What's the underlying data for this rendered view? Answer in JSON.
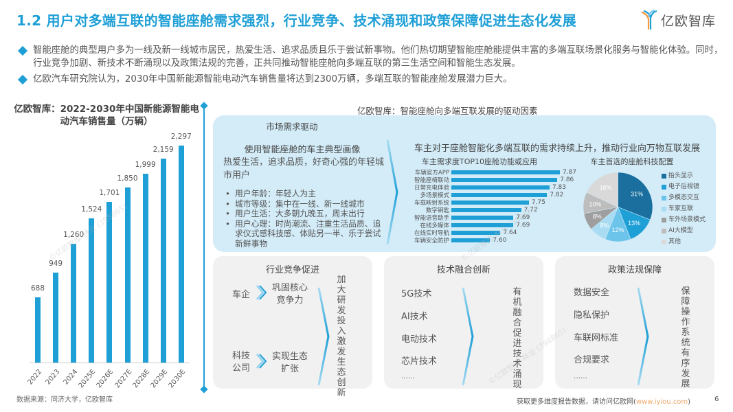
{
  "header": {
    "title": "1.2 用户对多端互联的智能座舱需求强烈，行业竞争、技术涌现和政策保障促进生态化发展",
    "logo_text": "亿欧智库"
  },
  "bullets": [
    "智能座舱的典型用户多为一线及新一线城市居民，热爱生活、追求品质且乐于尝试新事物。他们热切期望智能座舱能提供丰富的多端互联场景化服务与智能化体验。同时，行业竞争加剧、新技术不断涌现以及政策法规的完善，正共同推动智能座舱向多端互联的第三生活空间和智能生态发展。",
    "亿欧汽车研究院认为，2030年中国新能源智能电动汽车销售量将达到2300万辆，多端互联的智能座舱发展潜力巨大。"
  ],
  "left_panel": {
    "title": "亿欧智库：2022-2030年中国新能源智能电动汽车销售量（万辆）",
    "source": "数据来源：同济大学，亿欧智库"
  },
  "chart_data": [
    {
      "type": "bar",
      "title": "亿欧智库：2022-2030年中国新能源智能电动汽车销售量（万辆）",
      "categories": [
        "2022",
        "2023",
        "2024",
        "2025E",
        "2026E",
        "2027E",
        "2028E",
        "2029E",
        "2030E"
      ],
      "values": [
        688,
        949,
        1260,
        1524,
        1701,
        1850,
        1999,
        2159,
        2297
      ],
      "value_labels": [
        "688",
        "949",
        "1,260",
        "1,524",
        "1,701",
        "1,850",
        "1,999",
        "2,159",
        "2,297"
      ],
      "xlabel": "",
      "ylabel": "万辆",
      "grid": false,
      "color": "#1e9fd6"
    },
    {
      "type": "bar",
      "orientation": "horizontal",
      "title": "车主需求度TOP10座舱功能或应用",
      "categories": [
        "车辆官方APP",
        "智能座椅联动",
        "日常充电体验",
        "多场景模式",
        "车载映射系统",
        "数字钥匙",
        "智能语音助手",
        "在线多媒体",
        "在线实时导航",
        "车辆安全防护"
      ],
      "values": [
        7.87,
        7.86,
        7.83,
        7.82,
        7.75,
        7.72,
        7.69,
        7.69,
        7.64,
        7.6
      ],
      "color": "#1e9fd6"
    },
    {
      "type": "pie",
      "title": "车主首选的座舱科技配置",
      "categories": [
        "抬头显示",
        "电子后视镜",
        "多模态交互",
        "车家互联",
        "车外场景模式",
        "AI大模型",
        "其他"
      ],
      "values": [
        31,
        13,
        12,
        8,
        8,
        10,
        18
      ],
      "colors": [
        "#1a6f9e",
        "#1e9fd6",
        "#6cc4ea",
        "#a9dcf2",
        "#9e9e9e",
        "#bdbdbd",
        "#d9d9d9"
      ],
      "legend_position": "right"
    }
  ],
  "right_panel": {
    "title": "亿欧智库：智能座舱向多端互联发展的驱动因素",
    "market": {
      "heading": "市场需求驱动",
      "persona_title": "使用智能座舱的车主典型画像",
      "persona_lead": "热爱生活，追求品质，好奇心强的年轻城市用户",
      "persona_points": [
        "用户年龄：年轻人为主",
        "城市等级：集中在一线、新一线城市",
        "用户生活：大多朝九晚五，周末出行",
        "用户心理：时尚潮流、注重生活品质、追求仪式感科技感、体贴另一半、乐于尝试新鲜事物"
      ],
      "demand_title": "车主对于座舱智能化多端互联的需求持续上升，推动行业向万物互联发展",
      "top10_title": "车主需求度TOP10座舱功能或应用",
      "top10": [
        {
          "label": "车辆官方APP",
          "value": "7.87"
        },
        {
          "label": "智能座椅联动",
          "value": "7.86"
        },
        {
          "label": "日常充电体验",
          "value": "7.83"
        },
        {
          "label": "多场景模式",
          "value": "7.82"
        },
        {
          "label": "车载映射系统",
          "value": "7.75"
        },
        {
          "label": "数字钥匙",
          "value": "7.72"
        },
        {
          "label": "智能语音助手",
          "value": "7.69"
        },
        {
          "label": "在线多媒体",
          "value": "7.69"
        },
        {
          "label": "在线实时导航",
          "value": "7.64"
        },
        {
          "label": "车辆安全防护",
          "value": "7.60"
        }
      ],
      "pie_title": "车主首选的座舱科技配置",
      "pie_labels": [
        "31%",
        "13%",
        "12%",
        "8%",
        "8%",
        "10%",
        "18%"
      ],
      "legend": [
        "抬头显示",
        "电子后视镜",
        "多模态交互",
        "车家互联",
        "车外场景模式",
        "AI大模型",
        "其他"
      ]
    },
    "industry": {
      "title": "行业竞争促进",
      "rows": [
        {
          "actor": "车企",
          "result": "巩固核心竞争力"
        },
        {
          "actor": "科技公司",
          "result": "实现生态扩张"
        }
      ],
      "conclusion": "加大研发投入激发生态创新"
    },
    "tech": {
      "title": "技术融合创新",
      "items": [
        "5G技术",
        "AI技术",
        "电动技术",
        "芯片技术",
        "……"
      ],
      "conclusion": "有机融合促进技术涌现"
    },
    "policy": {
      "title": "政策法规保障",
      "items": [
        "数据安全",
        "隐私保护",
        "车联网标准",
        "合规要求",
        "……"
      ],
      "conclusion": "保障操作系统有序发展"
    }
  },
  "footer": {
    "text": "获取更多维度报告数据，请访问亿欧网(",
    "url": "www.iyiou.com",
    "close": ")",
    "page": "6"
  },
  "colors": {
    "accent": "#1e9fd6",
    "market_bg": "#d3ecf8",
    "card_bg": "#f1f1f1",
    "link": "#f0a86a"
  }
}
